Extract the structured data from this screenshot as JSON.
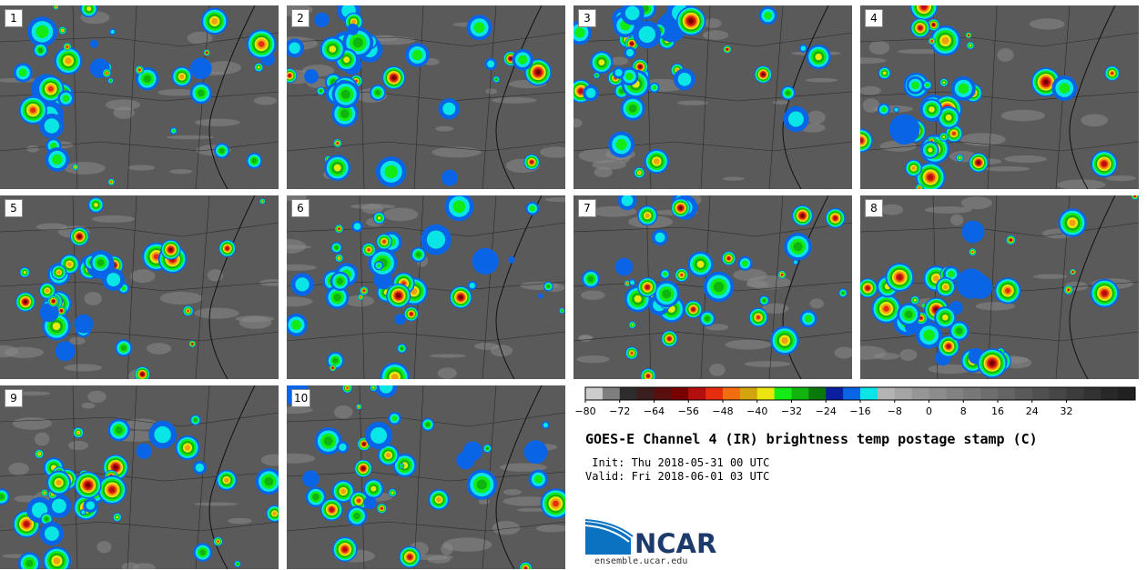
{
  "panels": [
    {
      "number": "1"
    },
    {
      "number": "2"
    },
    {
      "number": "3"
    },
    {
      "number": "4"
    },
    {
      "number": "5"
    },
    {
      "number": "6"
    },
    {
      "number": "7"
    },
    {
      "number": "8"
    },
    {
      "number": "9"
    },
    {
      "number": "10"
    }
  ],
  "colorbar": {
    "colors": [
      "#cdcdcd",
      "#7f7f7f",
      "#2d2d2d",
      "#3c1e1e",
      "#5a0f0f",
      "#780000",
      "#b40f0f",
      "#e62d0f",
      "#f06e0f",
      "#d2a50f",
      "#ebe60f",
      "#14eb14",
      "#0fb40f",
      "#0a780a",
      "#0a1ea0",
      "#0a64e6",
      "#0ae6e6",
      "#b4b4b4",
      "#a5a5a5",
      "#969696",
      "#8c8c8c",
      "#828282",
      "#787878",
      "#6e6e6e",
      "#646464",
      "#5a5a5a",
      "#505050",
      "#464646",
      "#3c3c3c",
      "#323232",
      "#282828",
      "#202020"
    ],
    "tick_labels": [
      "−80",
      "−72",
      "−64",
      "−56",
      "−48",
      "−40",
      "−32",
      "−24",
      "−16",
      "−8",
      "0",
      "8",
      "16",
      "24",
      "32"
    ]
  },
  "title": "GOES-E Channel 4 (IR) brightness temp postage stamp (C)",
  "init_line": " Init: Thu 2018-05-31 00 UTC",
  "valid_line": "Valid: Fri 2018-06-01 03 UTC",
  "logo": {
    "text": "NCAR",
    "url": "ensemble.ucar.edu"
  }
}
